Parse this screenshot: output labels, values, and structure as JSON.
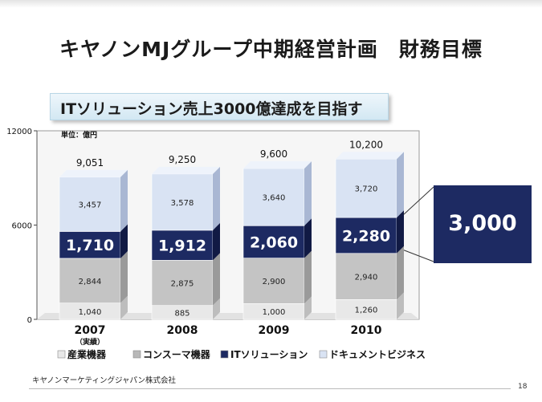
{
  "title": "キヤノンMJグループ中期経営計画　財務目標",
  "subtitle": "ITソリューション売上3000億達成を目指す",
  "footer": "キヤノンマーケティングジャパン株式会社",
  "page_number": "18",
  "callout_value": "3,000",
  "colors": {
    "industrial": "#e8e8e8",
    "consumer": "#c4c4c4",
    "it_solution": "#1d2a62",
    "document": "#d9e3f3",
    "callout": "#1d2a62"
  },
  "chart_data": {
    "type": "bar",
    "stacked": true,
    "unit_label": "単位：億円",
    "categories": [
      "2007",
      "2008",
      "2009",
      "2010"
    ],
    "category_notes": [
      "（実績）",
      "",
      "",
      ""
    ],
    "ylim": [
      0,
      12000
    ],
    "yticks": [
      "0",
      "6000",
      "12000"
    ],
    "series": [
      {
        "name": "産業機器",
        "values": [
          1040,
          885,
          1000,
          1260
        ],
        "labels": [
          "1,040",
          "885",
          "1,000",
          "1,260"
        ]
      },
      {
        "name": "コンスーマ機器",
        "values": [
          2844,
          2875,
          2900,
          2940
        ],
        "labels": [
          "2,844",
          "2,875",
          "2,900",
          "2,940"
        ]
      },
      {
        "name": "ITソリューション",
        "values": [
          1710,
          1912,
          2060,
          2280
        ],
        "labels": [
          "1,710",
          "1,912",
          "2,060",
          "2,280"
        ]
      },
      {
        "name": "ドキュメントビジネス",
        "values": [
          3457,
          3578,
          3640,
          3720
        ],
        "labels": [
          "3,457",
          "3,578",
          "3,640",
          "3,720"
        ]
      }
    ],
    "totals": [
      "9,051",
      "9,250",
      "9,600",
      "10,200"
    ],
    "legend_position": "bottom"
  }
}
